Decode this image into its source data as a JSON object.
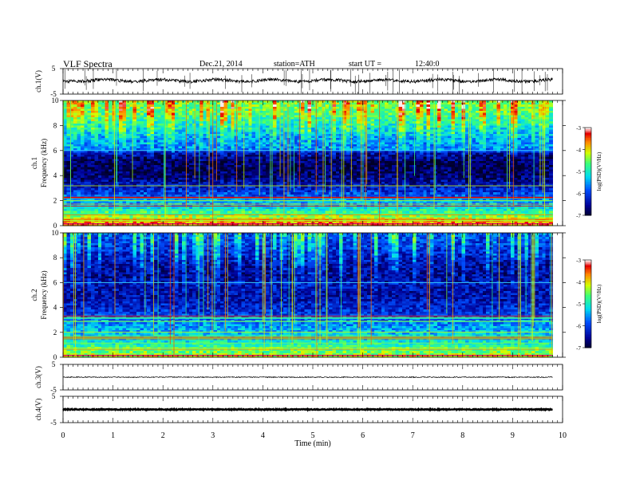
{
  "header": {
    "title": "VLF Spectra",
    "date": "Dec.21, 2014",
    "station": "station=ATH",
    "start": "start UT =",
    "start_time": "12:40:0"
  },
  "chart_data": [
    {
      "type": "line",
      "panel": "ch1-waveform",
      "ylabel": "ch.1(V)",
      "ylim": [
        -5,
        5
      ],
      "yticks": [
        "5",
        "-5"
      ],
      "x": [
        0,
        9.8
      ],
      "baseline": 0.3,
      "spikes": true
    },
    {
      "type": "heatmap",
      "panel": "ch1-spectrogram",
      "ylabel": "ch.1 Frequency (kHz)",
      "xlim": [
        0,
        9.8
      ],
      "ylim": [
        0,
        10
      ],
      "yticks": [
        "0",
        "2",
        "4",
        "6",
        "8",
        "10"
      ],
      "colorbar": {
        "label": "log(PSD)(V²/Hz)",
        "range": [
          -7,
          -3
        ],
        "ticks": [
          "-3",
          "-4",
          "-5",
          "-6",
          "-7"
        ]
      },
      "profile_kHz": [
        0,
        0.4,
        0.6,
        1,
        1.5,
        2.2,
        3,
        4,
        5,
        5.8,
        6.1,
        6.8,
        8,
        9,
        10
      ],
      "profile_logPSD": [
        -3.6,
        -3.8,
        -4.2,
        -4.6,
        -5.2,
        -5.7,
        -6.2,
        -6.7,
        -6.8,
        -6.4,
        -5.6,
        -5.5,
        -5.0,
        -4.6,
        -4.4
      ]
    },
    {
      "type": "heatmap",
      "panel": "ch2-spectrogram",
      "ylabel": "ch.2 Frequency (kHz)",
      "xlim": [
        0,
        9.8
      ],
      "ylim": [
        0,
        10
      ],
      "yticks": [
        "0",
        "2",
        "4",
        "6",
        "8",
        "10"
      ],
      "colorbar": {
        "label": "log(PSD)(V²/Hz)",
        "range": [
          -7,
          -3
        ],
        "ticks": [
          "-3",
          "-4",
          "-5",
          "-6",
          "-7"
        ]
      },
      "profile_kHz": [
        0,
        0.3,
        0.8,
        1.2,
        2,
        2.8,
        3.5,
        4.2,
        5,
        5.8,
        6.5,
        7.5,
        8.5,
        10
      ],
      "profile_logPSD": [
        -4.0,
        -4.4,
        -4.7,
        -5.0,
        -5.3,
        -5.6,
        -6.0,
        -6.2,
        -6.4,
        -6.3,
        -6.5,
        -6.4,
        -6.1,
        -5.8
      ]
    },
    {
      "type": "line",
      "panel": "ch3-waveform",
      "ylabel": "ch.3(V)",
      "ylim": [
        -5,
        5
      ],
      "yticks": [
        "5",
        "-5"
      ],
      "x": [
        0,
        9.8
      ],
      "baseline": 0
    },
    {
      "type": "line",
      "panel": "ch4-waveform",
      "ylabel": "ch.4(V)",
      "ylim": [
        -5,
        5
      ],
      "yticks": [
        "5",
        "-5"
      ],
      "x": [
        0,
        9.8
      ],
      "baseline": 0
    }
  ],
  "xaxis": {
    "label": "Time (min)",
    "range": [
      0,
      10
    ],
    "ticks": [
      "0",
      "1",
      "2",
      "3",
      "4",
      "5",
      "6",
      "7",
      "8",
      "9",
      "10"
    ]
  }
}
